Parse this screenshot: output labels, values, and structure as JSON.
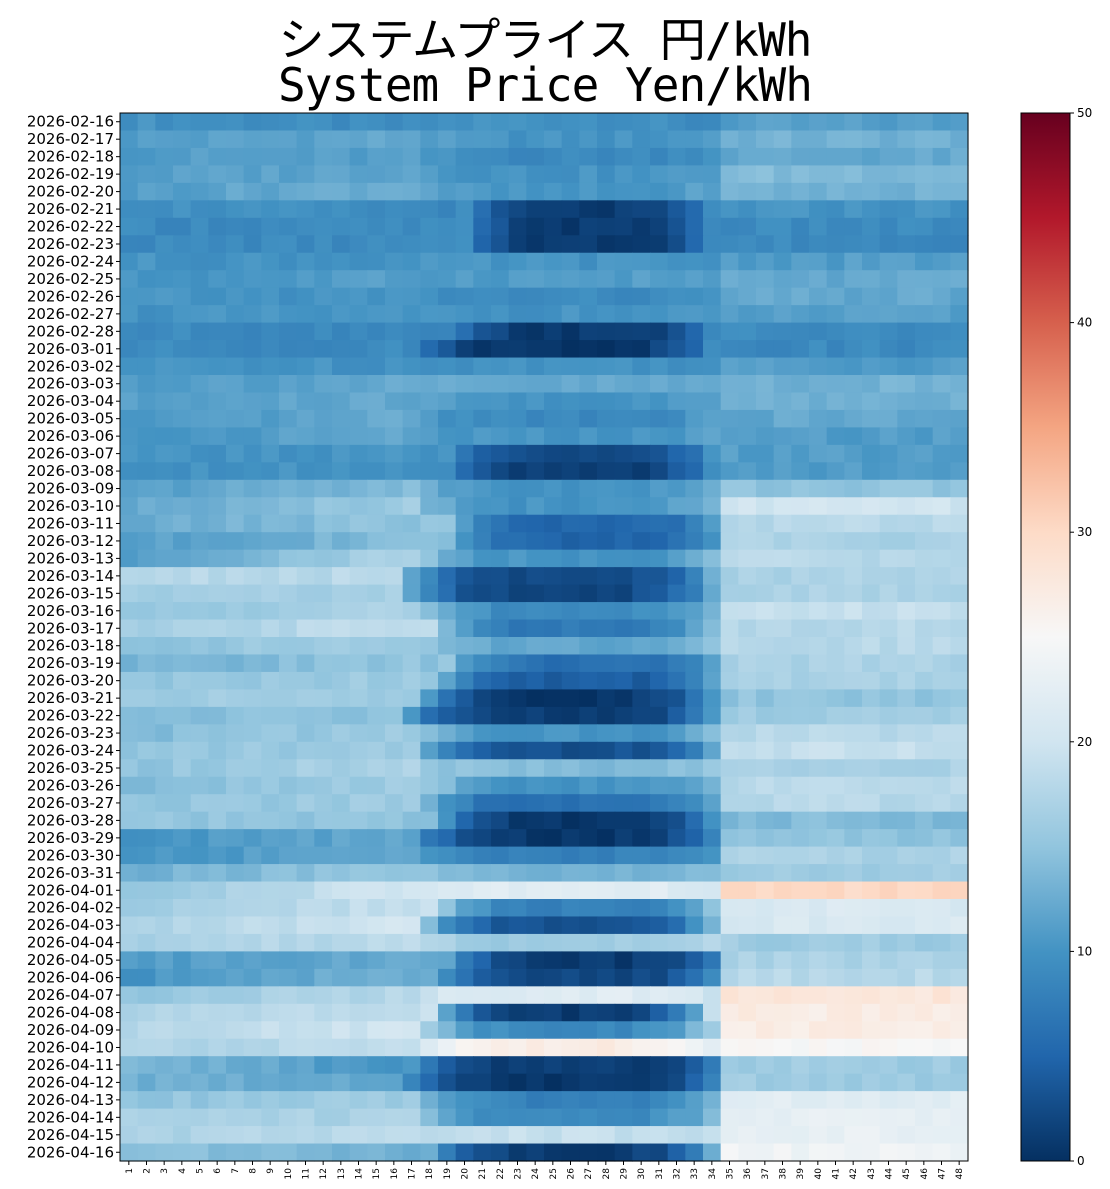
{
  "chart_data": {
    "type": "heatmap",
    "title": "システムプライス 円/kWh",
    "subtitle": "System Price Yen/kWh",
    "rows": [
      "2026-02-16",
      "2026-02-17",
      "2026-02-18",
      "2026-02-19",
      "2026-02-20",
      "2026-02-21",
      "2026-02-22",
      "2026-02-23",
      "2026-02-24",
      "2026-02-25",
      "2026-02-26",
      "2026-02-27",
      "2026-02-28",
      "2026-03-01",
      "2026-03-02",
      "2026-03-03",
      "2026-03-04",
      "2026-03-05",
      "2026-03-06",
      "2026-03-07",
      "2026-03-08",
      "2026-03-09",
      "2026-03-10",
      "2026-03-11",
      "2026-03-12",
      "2026-03-13",
      "2026-03-14",
      "2026-03-15",
      "2026-03-16",
      "2026-03-17",
      "2026-03-18",
      "2026-03-19",
      "2026-03-20",
      "2026-03-21",
      "2026-03-22",
      "2026-03-23",
      "2026-03-24",
      "2026-03-25",
      "2026-03-26",
      "2026-03-27",
      "2026-03-28",
      "2026-03-29",
      "2026-03-30",
      "2026-03-31",
      "2026-04-01",
      "2026-04-02",
      "2026-04-03",
      "2026-04-04",
      "2026-04-05",
      "2026-04-06",
      "2026-04-07",
      "2026-04-08",
      "2026-04-09",
      "2026-04-10",
      "2026-04-11",
      "2026-04-12",
      "2026-04-13",
      "2026-04-14",
      "2026-04-15",
      "2026-04-16"
    ],
    "columns": [
      "1",
      "2",
      "3",
      "4",
      "5",
      "6",
      "7",
      "8",
      "9",
      "10",
      "11",
      "12",
      "13",
      "14",
      "15",
      "16",
      "17",
      "18",
      "19",
      "20",
      "21",
      "22",
      "23",
      "24",
      "25",
      "26",
      "27",
      "28",
      "29",
      "30",
      "31",
      "32",
      "33",
      "34",
      "35",
      "36",
      "37",
      "38",
      "39",
      "40",
      "41",
      "42",
      "43",
      "44",
      "45",
      "46",
      "47",
      "48"
    ],
    "colorbar": {
      "min": 0,
      "max": 50,
      "ticks": [
        0,
        10,
        20,
        30,
        40,
        50
      ],
      "colormap": "RdBu_r"
    },
    "row_profiles": [
      {
        "n": 10,
        "d": 9,
        "m": 10,
        "e": 11,
        "m0": 17,
        "m1": 30
      },
      {
        "n": 11,
        "d": 12,
        "m": 10,
        "e": 13,
        "m0": 17,
        "m1": 33
      },
      {
        "n": 11,
        "d": 11,
        "m": 9,
        "e": 12,
        "m0": 17,
        "m1": 33
      },
      {
        "n": 11,
        "d": 12,
        "m": 10,
        "e": 14,
        "m0": 17,
        "m1": 33
      },
      {
        "n": 11,
        "d": 13,
        "m": 10,
        "e": 13,
        "m0": 17,
        "m1": 33
      },
      {
        "n": 10,
        "d": 9,
        "m": 1,
        "e": 10,
        "m0": 20,
        "m1": 32
      },
      {
        "n": 9,
        "d": 9,
        "m": 1,
        "e": 9,
        "m0": 20,
        "m1": 32
      },
      {
        "n": 9,
        "d": 9,
        "m": 1,
        "e": 9,
        "m0": 20,
        "m1": 32
      },
      {
        "n": 10,
        "d": 10,
        "m": 10,
        "e": 11,
        "m0": 17,
        "m1": 33
      },
      {
        "n": 10,
        "d": 11,
        "m": 11,
        "e": 12,
        "m0": 17,
        "m1": 33
      },
      {
        "n": 10,
        "d": 10,
        "m": 9,
        "e": 12,
        "m0": 17,
        "m1": 33
      },
      {
        "n": 10,
        "d": 10,
        "m": 10,
        "e": 11,
        "m0": 17,
        "m1": 33
      },
      {
        "n": 9,
        "d": 9,
        "m": 1,
        "e": 9,
        "m0": 19,
        "m1": 32
      },
      {
        "n": 9,
        "d": 9,
        "m": 0.5,
        "e": 9,
        "m0": 17,
        "m1": 32
      },
      {
        "n": 10,
        "d": 10,
        "m": 10,
        "e": 11,
        "m0": 17,
        "m1": 33
      },
      {
        "n": 11,
        "d": 12,
        "m": 12,
        "e": 13,
        "m0": 17,
        "m1": 33
      },
      {
        "n": 11,
        "d": 12,
        "m": 10,
        "e": 13,
        "m0": 17,
        "m1": 33
      },
      {
        "n": 10,
        "d": 12,
        "m": 9,
        "e": 12,
        "m0": 17,
        "m1": 33
      },
      {
        "n": 10,
        "d": 12,
        "m": 10,
        "e": 11,
        "m0": 17,
        "m1": 33
      },
      {
        "n": 10,
        "d": 10,
        "m": 2,
        "e": 11,
        "m0": 19,
        "m1": 32
      },
      {
        "n": 10,
        "d": 10,
        "m": 1,
        "e": 11,
        "m0": 19,
        "m1": 32
      },
      {
        "n": 11,
        "d": 14,
        "m": 10,
        "e": 15,
        "m0": 17,
        "m1": 33
      },
      {
        "n": 12,
        "d": 16,
        "m": 10,
        "e": 20,
        "m0": 17,
        "m1": 33
      },
      {
        "n": 12,
        "d": 15,
        "m": 5,
        "e": 18,
        "m0": 19,
        "m1": 33
      },
      {
        "n": 11,
        "d": 14,
        "m": 5,
        "e": 17,
        "m0": 19,
        "m1": 33
      },
      {
        "n": 11,
        "d": 17,
        "m": 10,
        "e": 18,
        "m0": 17,
        "m1": 33
      },
      {
        "n": 18,
        "d": 18,
        "m": 2,
        "e": 17,
        "m0": 16,
        "m1": 33
      },
      {
        "n": 16,
        "d": 17,
        "m": 2,
        "e": 17,
        "m0": 16,
        "m1": 33
      },
      {
        "n": 15,
        "d": 17,
        "m": 9,
        "e": 19,
        "m0": 17,
        "m1": 33
      },
      {
        "n": 16,
        "d": 19,
        "m": 7,
        "e": 18,
        "m0": 18,
        "m1": 33
      },
      {
        "n": 15,
        "d": 16,
        "m": 12,
        "e": 18,
        "m0": 17,
        "m1": 33
      },
      {
        "n": 13,
        "d": 15,
        "m": 6,
        "e": 17,
        "m0": 19,
        "m1": 33
      },
      {
        "n": 15,
        "d": 16,
        "m": 4,
        "e": 17,
        "m0": 18,
        "m1": 33
      },
      {
        "n": 16,
        "d": 16,
        "m": 0.5,
        "e": 15,
        "m0": 17,
        "m1": 33
      },
      {
        "n": 14,
        "d": 15,
        "m": 1,
        "e": 16,
        "m0": 16,
        "m1": 33
      },
      {
        "n": 14,
        "d": 16,
        "m": 10,
        "e": 18,
        "m0": 17,
        "m1": 33
      },
      {
        "n": 15,
        "d": 16,
        "m": 3,
        "e": 19,
        "m0": 17,
        "m1": 33
      },
      {
        "n": 15,
        "d": 17,
        "m": 14,
        "e": 17,
        "m0": 17,
        "m1": 33
      },
      {
        "n": 14,
        "d": 16,
        "m": 10,
        "e": 18,
        "m0": 18,
        "m1": 33
      },
      {
        "n": 15,
        "d": 16,
        "m": 6,
        "e": 18,
        "m0": 17,
        "m1": 33
      },
      {
        "n": 15,
        "d": 15,
        "m": 0.5,
        "e": 14,
        "m0": 18,
        "m1": 33
      },
      {
        "n": 10,
        "d": 12,
        "m": 0.5,
        "e": 15,
        "m0": 17,
        "m1": 33
      },
      {
        "n": 10,
        "d": 12,
        "m": 8,
        "e": 17,
        "m0": 17,
        "m1": 33
      },
      {
        "n": 13,
        "d": 15,
        "m": 13,
        "e": 16,
        "m0": 17,
        "m1": 33
      },
      {
        "n": 15,
        "d": 20,
        "m": 22,
        "e": 30,
        "m0": 17,
        "m1": 33
      },
      {
        "n": 16,
        "d": 19,
        "m": 8,
        "e": 21,
        "m0": 18,
        "m1": 33
      },
      {
        "n": 17,
        "d": 20,
        "m": 3,
        "e": 21,
        "m0": 17,
        "m1": 33
      },
      {
        "n": 17,
        "d": 18,
        "m": 16,
        "e": 16,
        "m0": 17,
        "m1": 33
      },
      {
        "n": 11,
        "d": 12,
        "m": 1,
        "e": 17,
        "m0": 19,
        "m1": 33
      },
      {
        "n": 10,
        "d": 13,
        "m": 2,
        "e": 18,
        "m0": 18,
        "m1": 33
      },
      {
        "n": 15,
        "d": 18,
        "m": 22,
        "e": 28,
        "m0": 17,
        "m1": 33
      },
      {
        "n": 17,
        "d": 19,
        "m": 1,
        "e": 27,
        "m0": 18,
        "m1": 32
      },
      {
        "n": 18,
        "d": 20,
        "m": 9,
        "e": 27,
        "m0": 17,
        "m1": 33
      },
      {
        "n": 17,
        "d": 19,
        "m": 27,
        "e": 25,
        "m0": 17,
        "m1": 33
      },
      {
        "n": 14,
        "d": 10,
        "m": 1,
        "e": 16,
        "m0": 17,
        "m1": 33
      },
      {
        "n": 13,
        "d": 12,
        "m": 0.5,
        "e": 16,
        "m0": 16,
        "m1": 33
      },
      {
        "n": 15,
        "d": 16,
        "m": 8,
        "e": 22,
        "m0": 17,
        "m1": 33
      },
      {
        "n": 17,
        "d": 17,
        "m": 9,
        "e": 23,
        "m0": 17,
        "m1": 33
      },
      {
        "n": 17,
        "d": 18,
        "m": 19,
        "e": 23,
        "m0": 17,
        "m1": 33
      },
      {
        "n": 15,
        "d": 13,
        "m": 1,
        "e": 24,
        "m0": 18,
        "m1": 32
      }
    ]
  }
}
